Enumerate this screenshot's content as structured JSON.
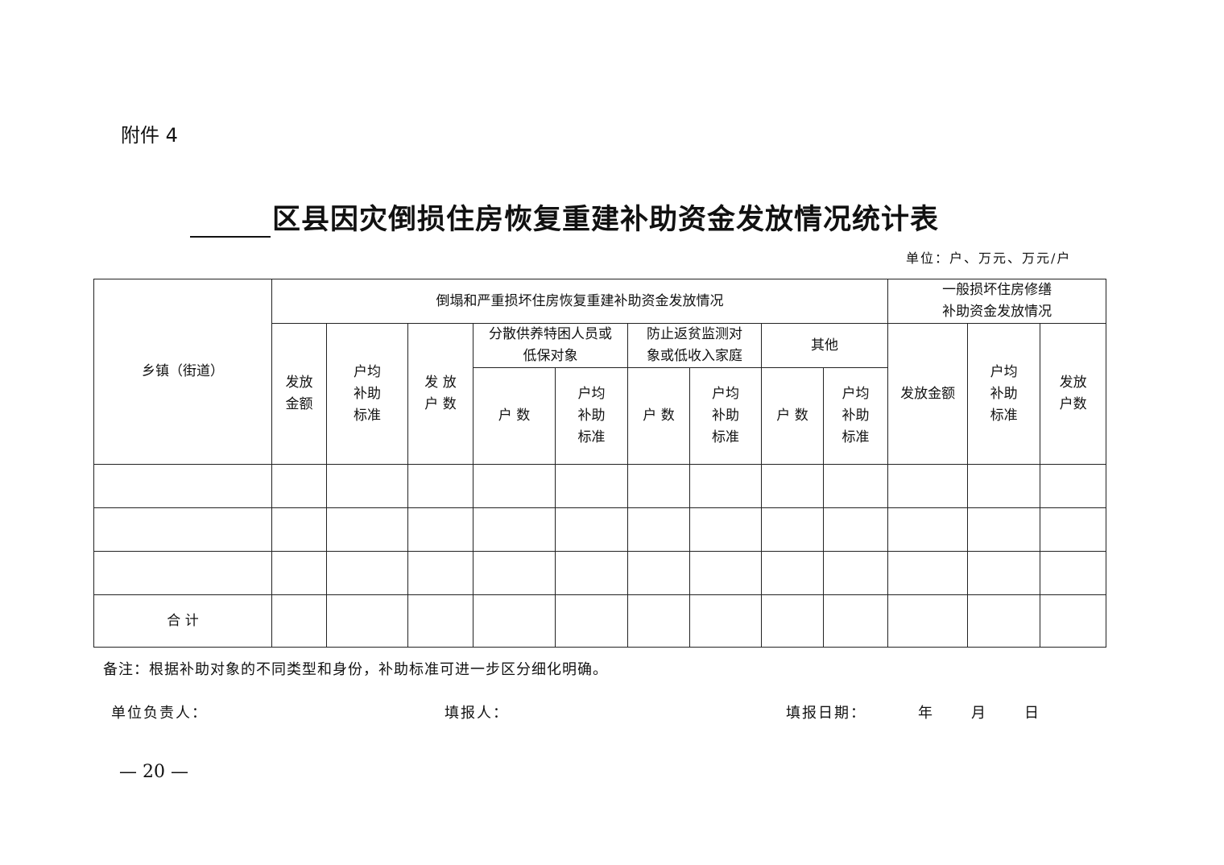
{
  "attachment": "附件 4",
  "title": "区县因灾倒损住房恢复重建补助资金发放情况统计表",
  "unit": "单位：户、万元、万元/户",
  "table": {
    "town_header": "乡镇（街道）",
    "group_a": "倒塌和严重损坏住房恢复重建补助资金发放情况",
    "group_b": "一般损坏住房修缮\n补助资金发放情况",
    "a_amount": "发放\n金额",
    "a_avg": "户均\n补助\n标准",
    "a_households": "发 放\n户 数",
    "sub1": "分散供养特困人员或\n低保对象",
    "sub2": "防止返贫监测对\n象或低收入家庭",
    "sub3": "其他",
    "hh": "户 数",
    "avg": "户均\n补助\n标准",
    "b_amount": "发放金额",
    "b_avg": "户均\n补助\n标准",
    "b_households": "发放\n户数",
    "total_label": "合 计"
  },
  "note": "备注：根据补助对象的不同类型和身份，补助标准可进一步区分细化明确。",
  "signatures": {
    "head": "单位负责人：",
    "filler": "填报人：",
    "date": "填报日期：",
    "year": "年",
    "month": "月",
    "day": "日"
  },
  "page_number": "— 20 —"
}
